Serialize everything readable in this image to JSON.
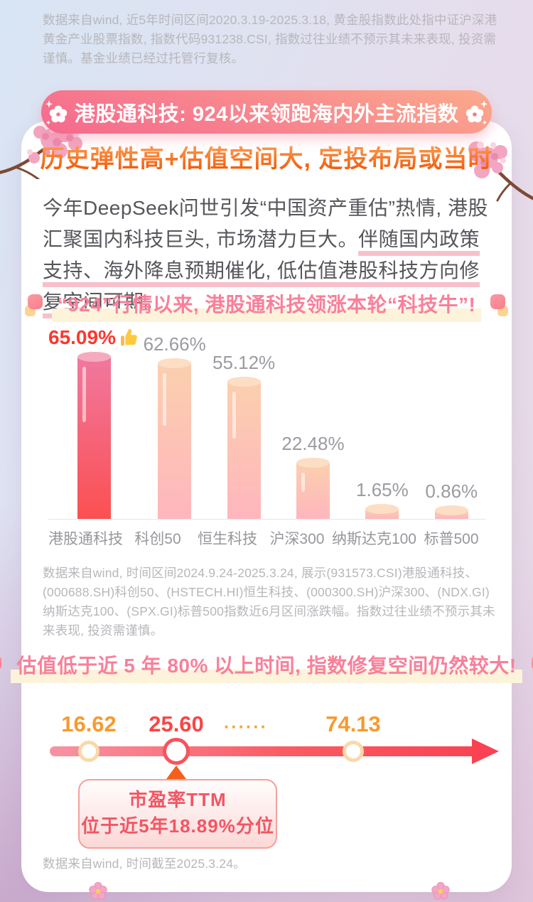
{
  "page": {
    "top_disclaimer": "数据来自wind, 近5年时间区间2020.3.19-2025.3.18, 黄金股指数此处指中证沪深港黄金产业股票指数, 指数代码931238.CSI, 指数过往业绩不预示其未来表现, 投资需谨慎。基金业绩已经过托管行复核。",
    "banner_title": "港股通科技: 924以来领跑海内外主流指数",
    "subtitle": "历史弹性高+估值空间大, 定投布局或当时",
    "intro": {
      "normal": "今年DeepSeek问世引发“中国资产重估”热情, 港股汇聚国内科技巨头, 市场潜力巨大。",
      "underlined": "伴随国内政策支持、海外降息预期催化, 低估值港股科技方向修复空间可期。"
    },
    "mid_disclaimer": "数据来自wind, 时间区间2024.9.24-2025.3.24, 展示(931573.CSI)港股通科技、(000688.SH)科创50、(HSTECH.HI)恒生科技、(000300.SH)沪深300、(NDX.GI)纳斯达克100、(SPX.GI)标普500指数近6月区间涨跌幅。指数过往业绩不预示其未来表现, 投资需谨慎。",
    "bottom_disclaimer": "数据来自wind, 时间截至2025.3.24。"
  },
  "chart_data": [
    {
      "type": "bar",
      "title": "“924”行情以来, 港股通科技领涨本轮“科技牛”!",
      "categories": [
        "港股通科技",
        "科创50",
        "恒生科技",
        "沪深300",
        "纳斯达克100",
        "标普500"
      ],
      "values": [
        65.09,
        62.66,
        55.12,
        22.48,
        1.65,
        0.86
      ],
      "value_labels": [
        "65.09%",
        "62.66%",
        "55.12%",
        "22.48%",
        "1.65%",
        "0.86%"
      ],
      "unit": "%",
      "highlight_index": 0,
      "ylim": [
        0,
        70
      ],
      "grid": false,
      "legend": null,
      "colors": {
        "highlight_bar_top": "#f0789f",
        "highlight_bar_bottom": "#fb5052",
        "bar_top": "#fbcfae",
        "bar_bottom": "#ffb6bd",
        "highlight_value_text": "#fb382e",
        "value_text": "#9b9ba1"
      }
    },
    {
      "type": "line",
      "subtype": "number-line",
      "title": "估值低于近 5 年 80% 以上时间, 指数修复空间仍然较大!",
      "points": [
        {
          "label": "16.62",
          "role": "min",
          "color": "#f79a2e"
        },
        {
          "label": "25.60",
          "role": "current",
          "color": "#fb4545"
        },
        {
          "label": "······",
          "role": "ellipsis",
          "color": "#f7a13c"
        },
        {
          "label": "74.13",
          "role": "max",
          "color": "#f79a2e"
        }
      ],
      "annotation": {
        "line1": "市盈率TTM",
        "line2": "位于近5年18.89%分位"
      }
    }
  ]
}
